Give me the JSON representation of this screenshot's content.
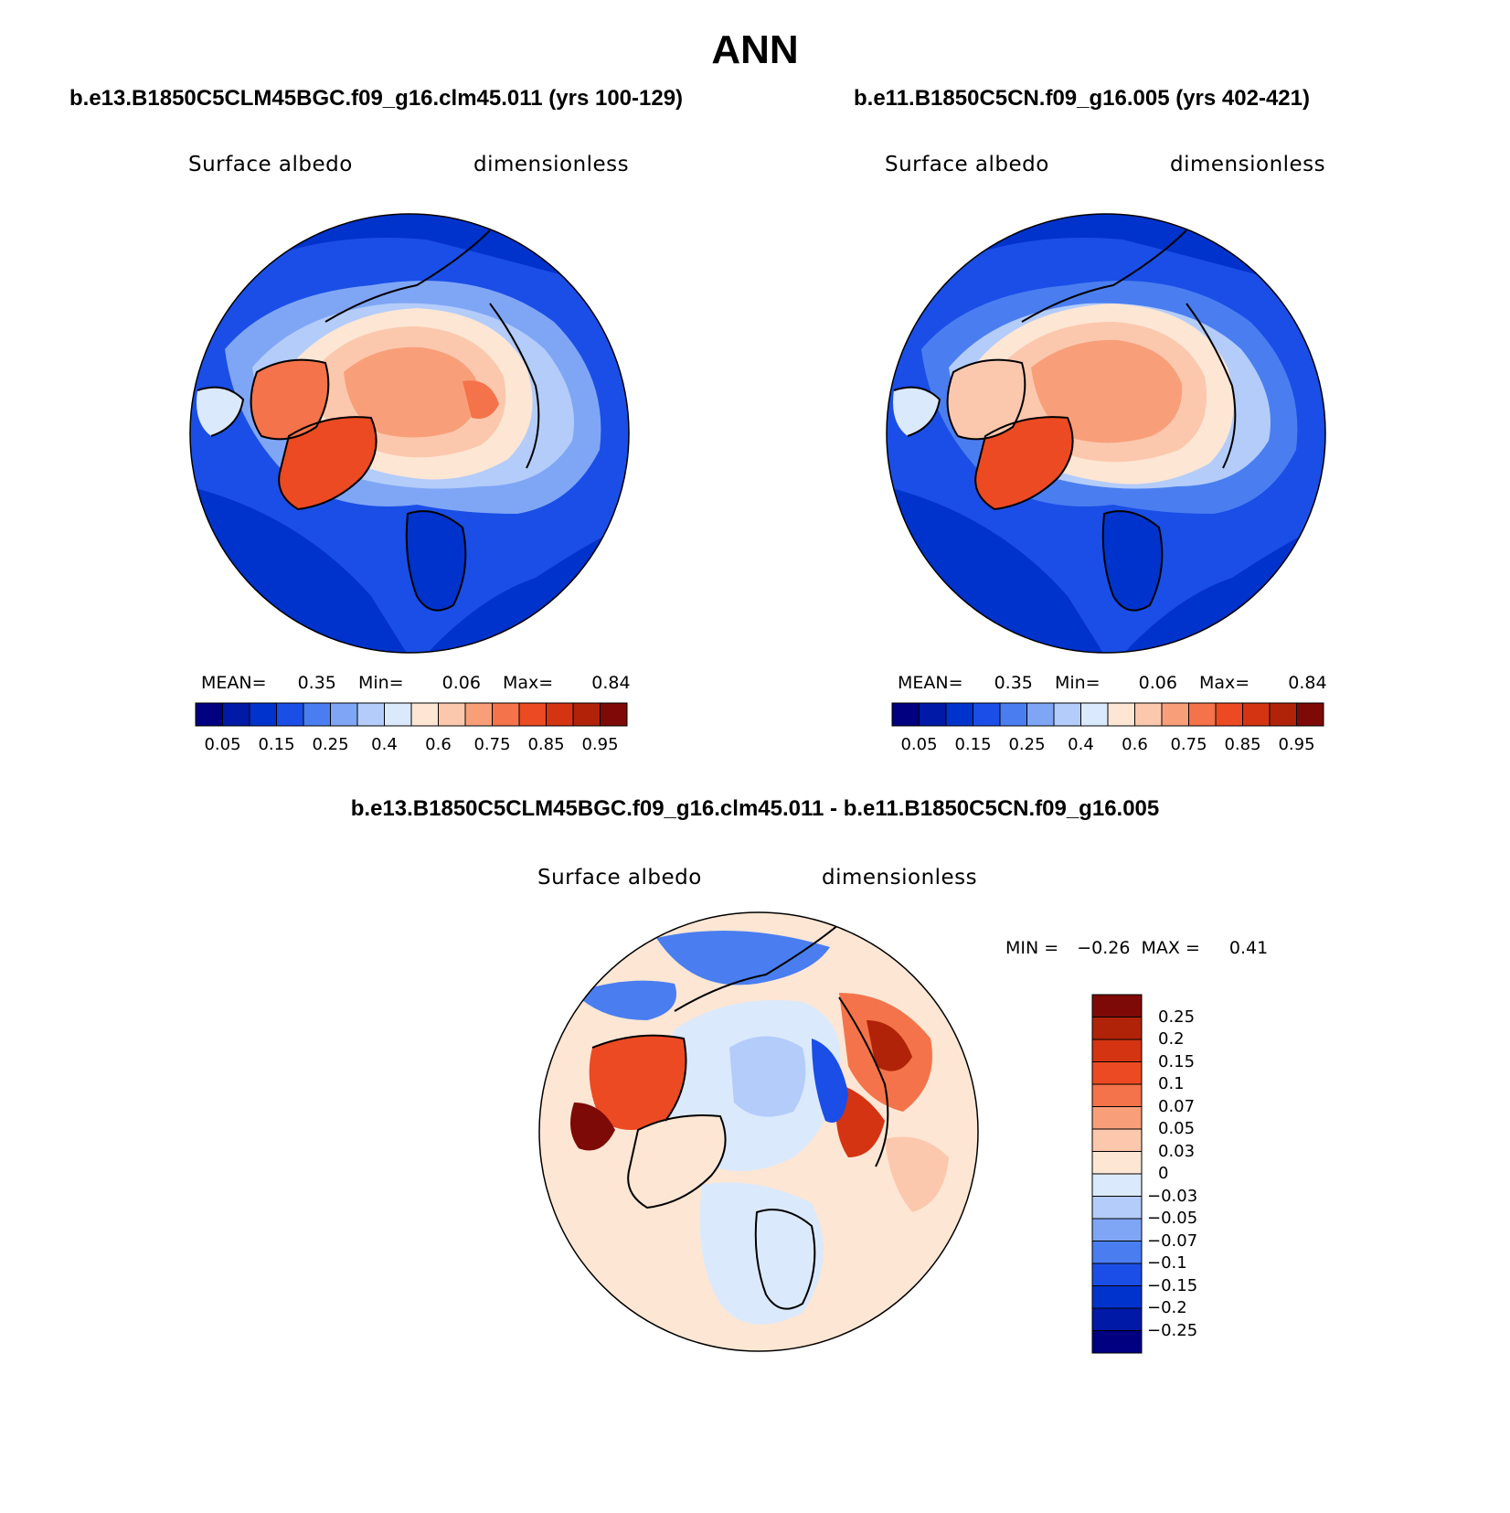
{
  "title": "ANN",
  "panels": [
    {
      "case": "b.e13.B1850C5CLM45BGC.f09_g16.clm45.011 (yrs 100-129)",
      "variable": "Surface albedo",
      "units": "dimensionless",
      "stats": {
        "mean_label": "MEAN=",
        "mean": "0.35",
        "min_label": "Min=",
        "min": "0.06",
        "max_label": "Max=",
        "max": "0.84"
      }
    },
    {
      "case": "b.e11.B1850C5CN.f09_g16.005 (yrs 402-421)",
      "variable": "Surface albedo",
      "units": "dimensionless",
      "stats": {
        "mean_label": "MEAN=",
        "mean": "0.35",
        "min_label": "Min=",
        "min": "0.06",
        "max_label": "Max=",
        "max": "0.84"
      }
    }
  ],
  "colorbar": {
    "colors": [
      "#000080",
      "#0019a6",
      "#0033cc",
      "#1a4ee6",
      "#4a7ef0",
      "#7fa6f5",
      "#b3ccfa",
      "#dbe9fc",
      "#fde6d4",
      "#fbc8ae",
      "#f89f7a",
      "#f4734a",
      "#ec4a22",
      "#d43412",
      "#b02308",
      "#7d0a06"
    ],
    "tick_labels": [
      "0.05",
      "0.15",
      "0.25",
      "0.4",
      "0.6",
      "0.75",
      "0.85",
      "0.95"
    ]
  },
  "diff": {
    "title": "b.e13.B1850C5CLM45BGC.f09_g16.clm45.011 - b.e11.B1850C5CN.f09_g16.005",
    "variable": "Surface albedo",
    "units": "dimensionless",
    "stats": {
      "min_label": "MIN =",
      "min": "−0.26",
      "max_label": "MAX =",
      "max": "0.41"
    },
    "colorbar_colors": [
      "#7d0a06",
      "#b02308",
      "#d43412",
      "#ec4a22",
      "#f4734a",
      "#f89f7a",
      "#fbc8ae",
      "#fde6d4",
      "#dbe9fc",
      "#b3ccfa",
      "#7fa6f5",
      "#4a7ef0",
      "#1a4ee6",
      "#0033cc",
      "#0019a6",
      "#000080"
    ],
    "tick_labels": [
      "0.25",
      "0.2",
      "0.15",
      "0.1",
      "0.07",
      "0.05",
      "0.03",
      "0",
      "−0.03",
      "−0.05",
      "−0.07",
      "−0.1",
      "−0.15",
      "−0.2",
      "−0.25"
    ]
  }
}
